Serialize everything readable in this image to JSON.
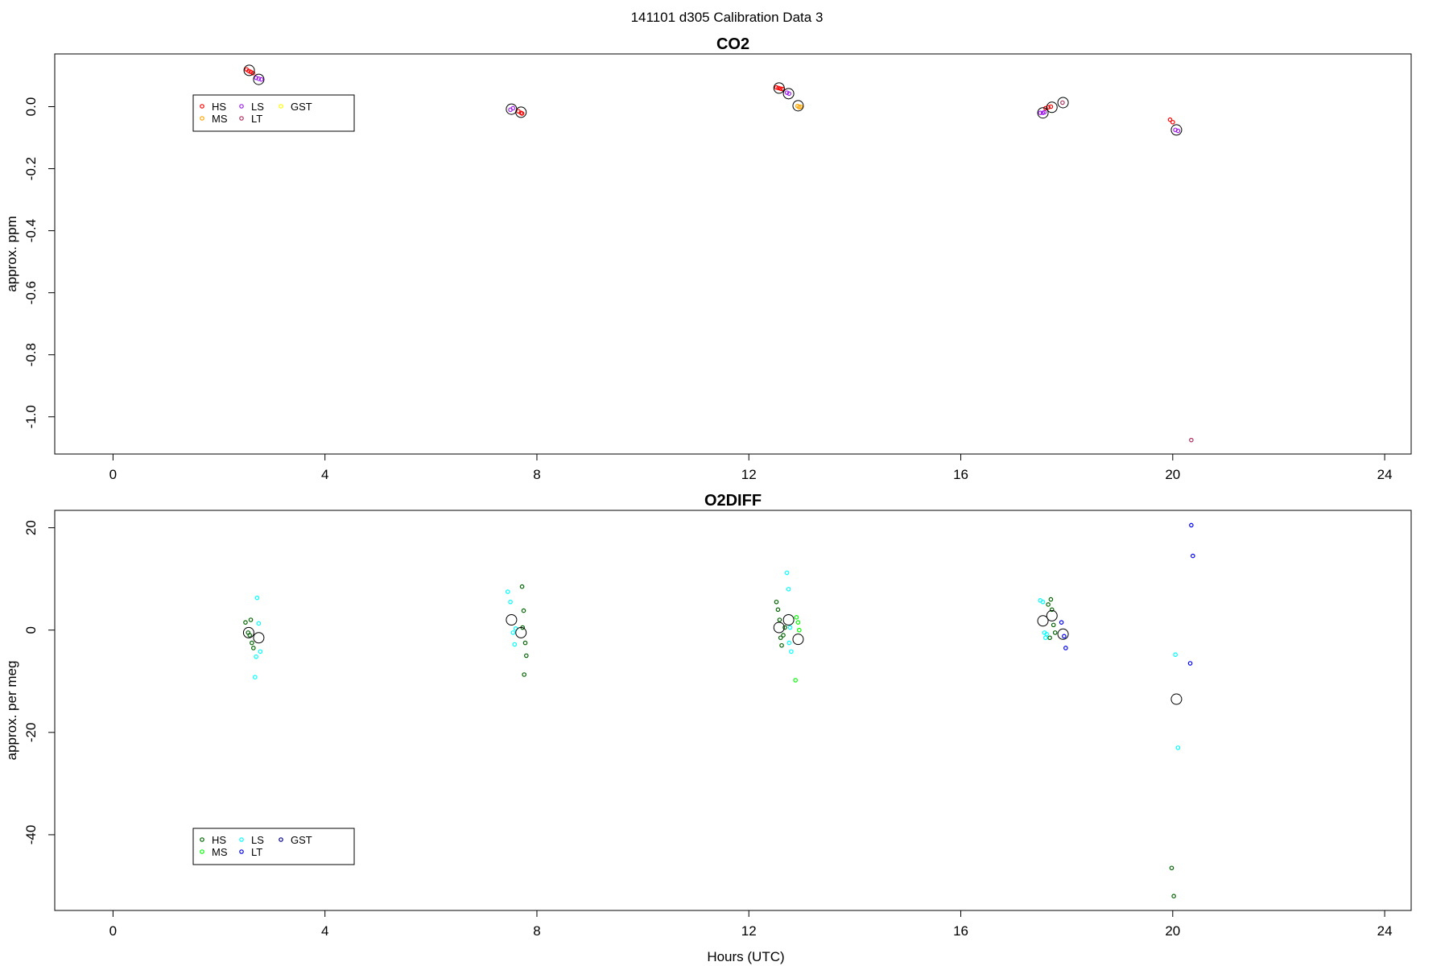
{
  "figure": {
    "suptitle": "141101   d305   Calibration Data 3"
  },
  "chart_data": [
    {
      "type": "scatter",
      "title": "CO2",
      "xlabel": "",
      "ylabel": "approx. ppm",
      "xlim": [
        -1.1,
        24.5
      ],
      "ylim": [
        -1.12,
        0.17
      ],
      "x_ticks": [
        0,
        4,
        8,
        12,
        16,
        20,
        24
      ],
      "y_ticks": [
        0.0,
        -0.2,
        -0.4,
        -0.6,
        -0.8,
        -1.0
      ],
      "y_tick_labels": [
        "0.0",
        "-0.2",
        "-0.4",
        "-0.6",
        "-0.8",
        "-1.0"
      ],
      "grid": false,
      "legend": {
        "placement": "top-left",
        "entries": [
          {
            "label": "HS",
            "color": "#ff0000"
          },
          {
            "label": "MS",
            "color": "#ffa500"
          },
          {
            "label": "LS",
            "color": "#a020f0"
          },
          {
            "label": "LT",
            "color": "#b03060"
          },
          {
            "label": "GST",
            "color": "#ffff00"
          }
        ]
      },
      "series": [
        {
          "name": "HS",
          "color": "#ff0000",
          "points": [
            [
              2.52,
              0.12
            ],
            [
              2.56,
              0.115
            ],
            [
              2.6,
              0.112
            ],
            [
              2.64,
              0.108
            ],
            [
              7.65,
              -0.015
            ],
            [
              7.7,
              -0.02
            ],
            [
              7.72,
              -0.022
            ],
            [
              12.52,
              0.062
            ],
            [
              12.56,
              0.06
            ],
            [
              12.6,
              0.058
            ],
            [
              12.64,
              0.057
            ],
            [
              17.6,
              -0.005
            ],
            [
              17.65,
              -0.002
            ],
            [
              17.7,
              0.0
            ],
            [
              19.95,
              -0.042
            ],
            [
              20.0,
              -0.05
            ]
          ]
        },
        {
          "name": "MS",
          "color": "#ffa500",
          "points": [
            [
              12.92,
              0.002
            ],
            [
              12.95,
              -0.002
            ],
            [
              12.98,
              0.0
            ]
          ]
        },
        {
          "name": "LS",
          "color": "#a020f0",
          "points": [
            [
              2.7,
              0.093
            ],
            [
              2.75,
              0.09
            ],
            [
              2.8,
              0.088
            ],
            [
              7.5,
              -0.01
            ],
            [
              7.55,
              -0.005
            ],
            [
              12.72,
              0.045
            ],
            [
              12.76,
              0.042
            ],
            [
              17.5,
              -0.02
            ],
            [
              17.55,
              -0.02
            ],
            [
              17.58,
              -0.018
            ],
            [
              20.05,
              -0.075
            ],
            [
              20.1,
              -0.078
            ]
          ]
        },
        {
          "name": "LT",
          "color": "#b03060",
          "points": [
            [
              17.92,
              0.013
            ],
            [
              20.35,
              -1.075
            ]
          ]
        },
        {
          "name": "GST",
          "color": "#ffff00",
          "points": []
        }
      ],
      "means": [
        [
          2.57,
          0.117
        ],
        [
          2.75,
          0.088
        ],
        [
          7.52,
          -0.008
        ],
        [
          7.7,
          -0.018
        ],
        [
          12.57,
          0.06
        ],
        [
          12.75,
          0.042
        ],
        [
          12.93,
          0.003
        ],
        [
          17.55,
          -0.02
        ],
        [
          17.72,
          -0.002
        ],
        [
          17.93,
          0.013
        ],
        [
          20.07,
          -0.075
        ]
      ]
    },
    {
      "type": "scatter",
      "title": "O2DIFF",
      "xlabel": "Hours (UTC)",
      "ylabel": "approx. per meg",
      "xlim": [
        -1.1,
        24.5
      ],
      "ylim": [
        -54.8,
        23.4
      ],
      "x_ticks": [
        0,
        4,
        8,
        12,
        16,
        20,
        24
      ],
      "y_ticks": [
        20,
        0,
        -20,
        -40
      ],
      "y_tick_labels": [
        "20",
        "0",
        "-20",
        "-40"
      ],
      "grid": false,
      "legend": {
        "placement": "bottom-left",
        "entries": [
          {
            "label": "HS",
            "color": "#006400"
          },
          {
            "label": "MS",
            "color": "#00ff00"
          },
          {
            "label": "LS",
            "color": "#00ffff"
          },
          {
            "label": "LT",
            "color": "#0000ff"
          },
          {
            "label": "GST",
            "color": "#00008b"
          }
        ]
      },
      "series": [
        {
          "name": "HS",
          "color": "#006400",
          "points": [
            [
              2.5,
              1.5
            ],
            [
              2.55,
              -0.5
            ],
            [
              2.6,
              2
            ],
            [
              2.62,
              -2.5
            ],
            [
              2.65,
              -3.5
            ],
            [
              2.58,
              -1
            ],
            [
              7.72,
              8.5
            ],
            [
              7.75,
              3.8
            ],
            [
              7.78,
              -2.5
            ],
            [
              7.8,
              -5
            ],
            [
              7.76,
              -8.7
            ],
            [
              7.73,
              0.5
            ],
            [
              12.52,
              5.5
            ],
            [
              12.55,
              4
            ],
            [
              12.58,
              2
            ],
            [
              12.6,
              -1.5
            ],
            [
              12.62,
              -3
            ],
            [
              12.65,
              -1
            ],
            [
              12.68,
              0.5
            ],
            [
              17.65,
              5
            ],
            [
              17.7,
              6
            ],
            [
              17.72,
              4
            ],
            [
              17.75,
              1
            ],
            [
              17.78,
              -0.5
            ],
            [
              17.68,
              -1.5
            ],
            [
              19.98,
              -46.5
            ],
            [
              20.02,
              -52
            ]
          ]
        },
        {
          "name": "MS",
          "color": "#00ff00",
          "points": [
            [
              12.9,
              2.5
            ],
            [
              12.93,
              1.5
            ],
            [
              12.95,
              0
            ],
            [
              12.88,
              -9.8
            ]
          ]
        },
        {
          "name": "LS",
          "color": "#00ffff",
          "points": [
            [
              2.72,
              6.3
            ],
            [
              2.75,
              1.3
            ],
            [
              2.78,
              -4.2
            ],
            [
              2.7,
              -5.2
            ],
            [
              2.68,
              -9.2
            ],
            [
              7.45,
              7.5
            ],
            [
              7.5,
              5.5
            ],
            [
              7.55,
              -0.5
            ],
            [
              7.58,
              -2.8
            ],
            [
              7.6,
              0.3
            ],
            [
              12.72,
              11.2
            ],
            [
              12.75,
              8
            ],
            [
              12.78,
              0.5
            ],
            [
              12.8,
              -4.2
            ],
            [
              12.76,
              -2.5
            ],
            [
              17.5,
              5.8
            ],
            [
              17.55,
              5.5
            ],
            [
              17.58,
              -0.5
            ],
            [
              17.6,
              -1.5
            ],
            [
              17.62,
              -0.8
            ],
            [
              20.05,
              -4.8
            ],
            [
              20.1,
              -23
            ]
          ]
        },
        {
          "name": "LT",
          "color": "#0000ff",
          "points": [
            [
              17.9,
              1.5
            ],
            [
              17.95,
              -1.2
            ],
            [
              17.98,
              -3.5
            ],
            [
              20.35,
              20.5
            ],
            [
              20.38,
              14.5
            ],
            [
              20.33,
              -6.5
            ]
          ]
        },
        {
          "name": "GST",
          "color": "#00008b",
          "points": []
        }
      ],
      "means": [
        [
          2.56,
          -0.5
        ],
        [
          2.75,
          -1.5
        ],
        [
          7.52,
          2
        ],
        [
          7.7,
          -0.5
        ],
        [
          12.57,
          0.5
        ],
        [
          12.75,
          2
        ],
        [
          12.93,
          -1.8
        ],
        [
          17.55,
          1.8
        ],
        [
          17.72,
          2.8
        ],
        [
          17.93,
          -0.8
        ],
        [
          20.07,
          -13.5
        ]
      ]
    }
  ]
}
